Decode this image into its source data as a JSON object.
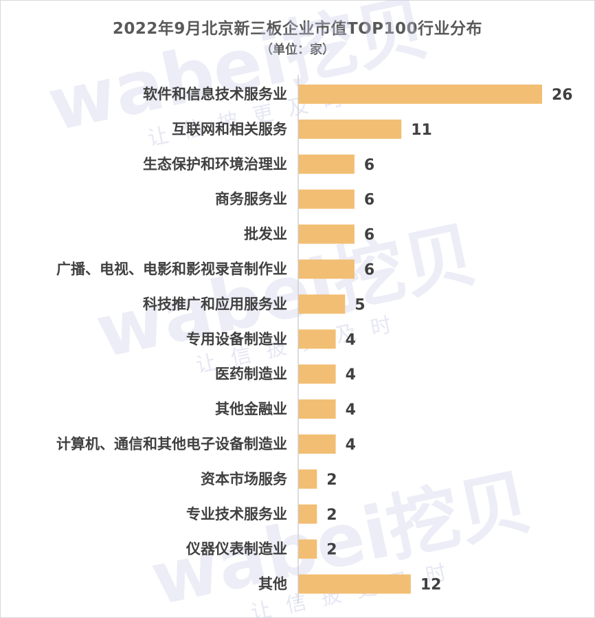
{
  "chart_data": {
    "type": "bar",
    "orientation": "horizontal",
    "title": "2022年9月北京新三板企业市值TOP100行业分布",
    "subtitle": "（单位：家）",
    "categories": [
      "软件和信息技术服务业",
      "互联网和相关服务",
      "生态保护和环境治理业",
      "商务服务业",
      "批发业",
      "广播、电视、电影和影视录音制作业",
      "科技推广和应用服务业",
      "专用设备制造业",
      "医药制造业",
      "其他金融业",
      "计算机、通信和其他电子设备制造业",
      "资本市场服务",
      "专业技术服务业",
      "仪器仪表制造业",
      "其他"
    ],
    "values": [
      26,
      11,
      6,
      6,
      6,
      6,
      5,
      4,
      4,
      4,
      4,
      2,
      2,
      2,
      12
    ],
    "xlim": [
      0,
      26
    ],
    "grid": false,
    "legend": "none",
    "bar_color": "#F2BE73",
    "axis_color": "#D0D0D0"
  },
  "watermark": {
    "brand": "wabei挖贝",
    "tagline": "让信披更及时"
  }
}
